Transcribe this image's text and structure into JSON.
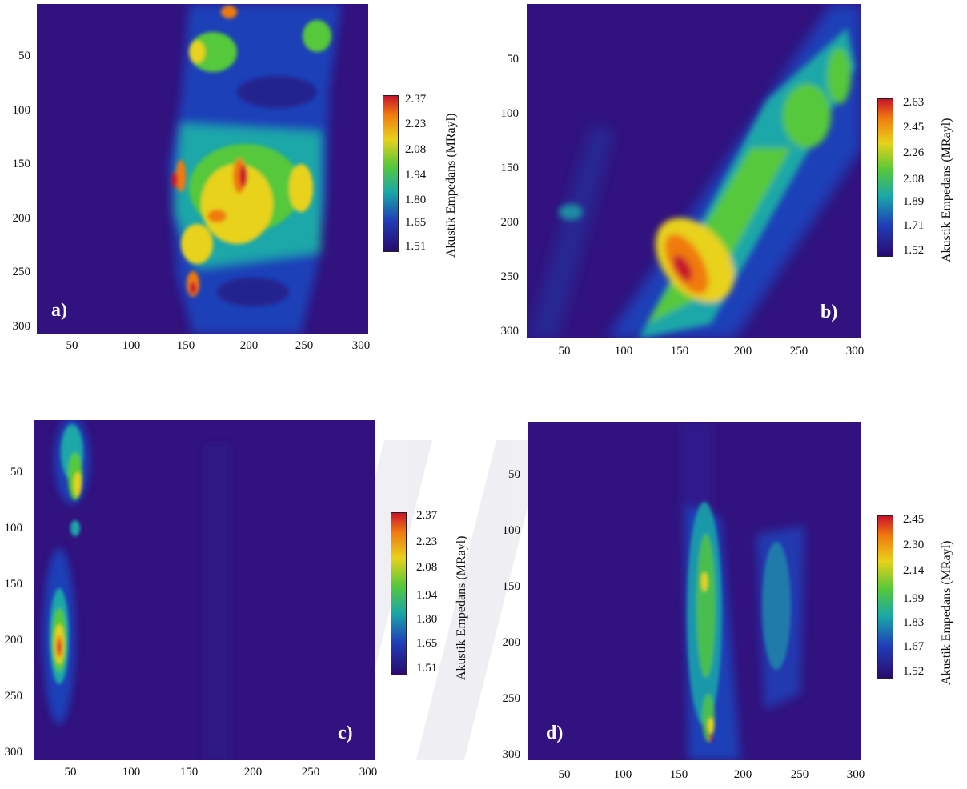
{
  "colors": {
    "background_low": "#31127e",
    "colormap": [
      "#2a0a6e",
      "#1f3fb8",
      "#1aa7a8",
      "#56c83a",
      "#e8d21a",
      "#f07a10",
      "#c8142a"
    ]
  },
  "chart_data": [
    {
      "type": "heatmap",
      "panel_label": "a)",
      "x_ticks": [
        "50",
        "100",
        "150",
        "200",
        "250",
        "300"
      ],
      "y_ticks": [
        "50",
        "100",
        "150",
        "200",
        "250",
        "300"
      ],
      "colorbar": {
        "label": "Akustik Empedans (MRayl)",
        "ticks": [
          "2.37",
          "2.23",
          "2.08",
          "1.94",
          "1.80",
          "1.65",
          "1.51"
        ],
        "range": [
          1.51,
          2.37
        ]
      }
    },
    {
      "type": "heatmap",
      "panel_label": "b)",
      "x_ticks": [
        "50",
        "100",
        "150",
        "200",
        "250",
        "300"
      ],
      "y_ticks": [
        "50",
        "100",
        "150",
        "200",
        "250",
        "300"
      ],
      "colorbar": {
        "label": "Akustik Empedans (MRayl)",
        "ticks": [
          "2.63",
          "2.45",
          "2.26",
          "2.08",
          "1.89",
          "1.71",
          "1.52"
        ],
        "range": [
          1.52,
          2.63
        ]
      }
    },
    {
      "type": "heatmap",
      "panel_label": "c)",
      "x_ticks": [
        "50",
        "100",
        "150",
        "200",
        "250",
        "300"
      ],
      "y_ticks": [
        "50",
        "100",
        "150",
        "200",
        "250",
        "300"
      ],
      "colorbar": {
        "label": "Akustik Empedans (MRayl)",
        "ticks": [
          "2.37",
          "2.23",
          "2.08",
          "1.94",
          "1.80",
          "1.65",
          "1.51"
        ],
        "range": [
          1.51,
          2.37
        ]
      }
    },
    {
      "type": "heatmap",
      "panel_label": "d)",
      "x_ticks": [
        "50",
        "100",
        "150",
        "200",
        "250",
        "300"
      ],
      "y_ticks": [
        "50",
        "100",
        "150",
        "200",
        "250",
        "300"
      ],
      "colorbar": {
        "label": "Akustik Empedans (MRayl)",
        "ticks": [
          "2.45",
          "2.30",
          "2.14",
          "1.99",
          "1.83",
          "1.67",
          "1.52"
        ],
        "range": [
          1.52,
          2.45
        ]
      }
    }
  ]
}
